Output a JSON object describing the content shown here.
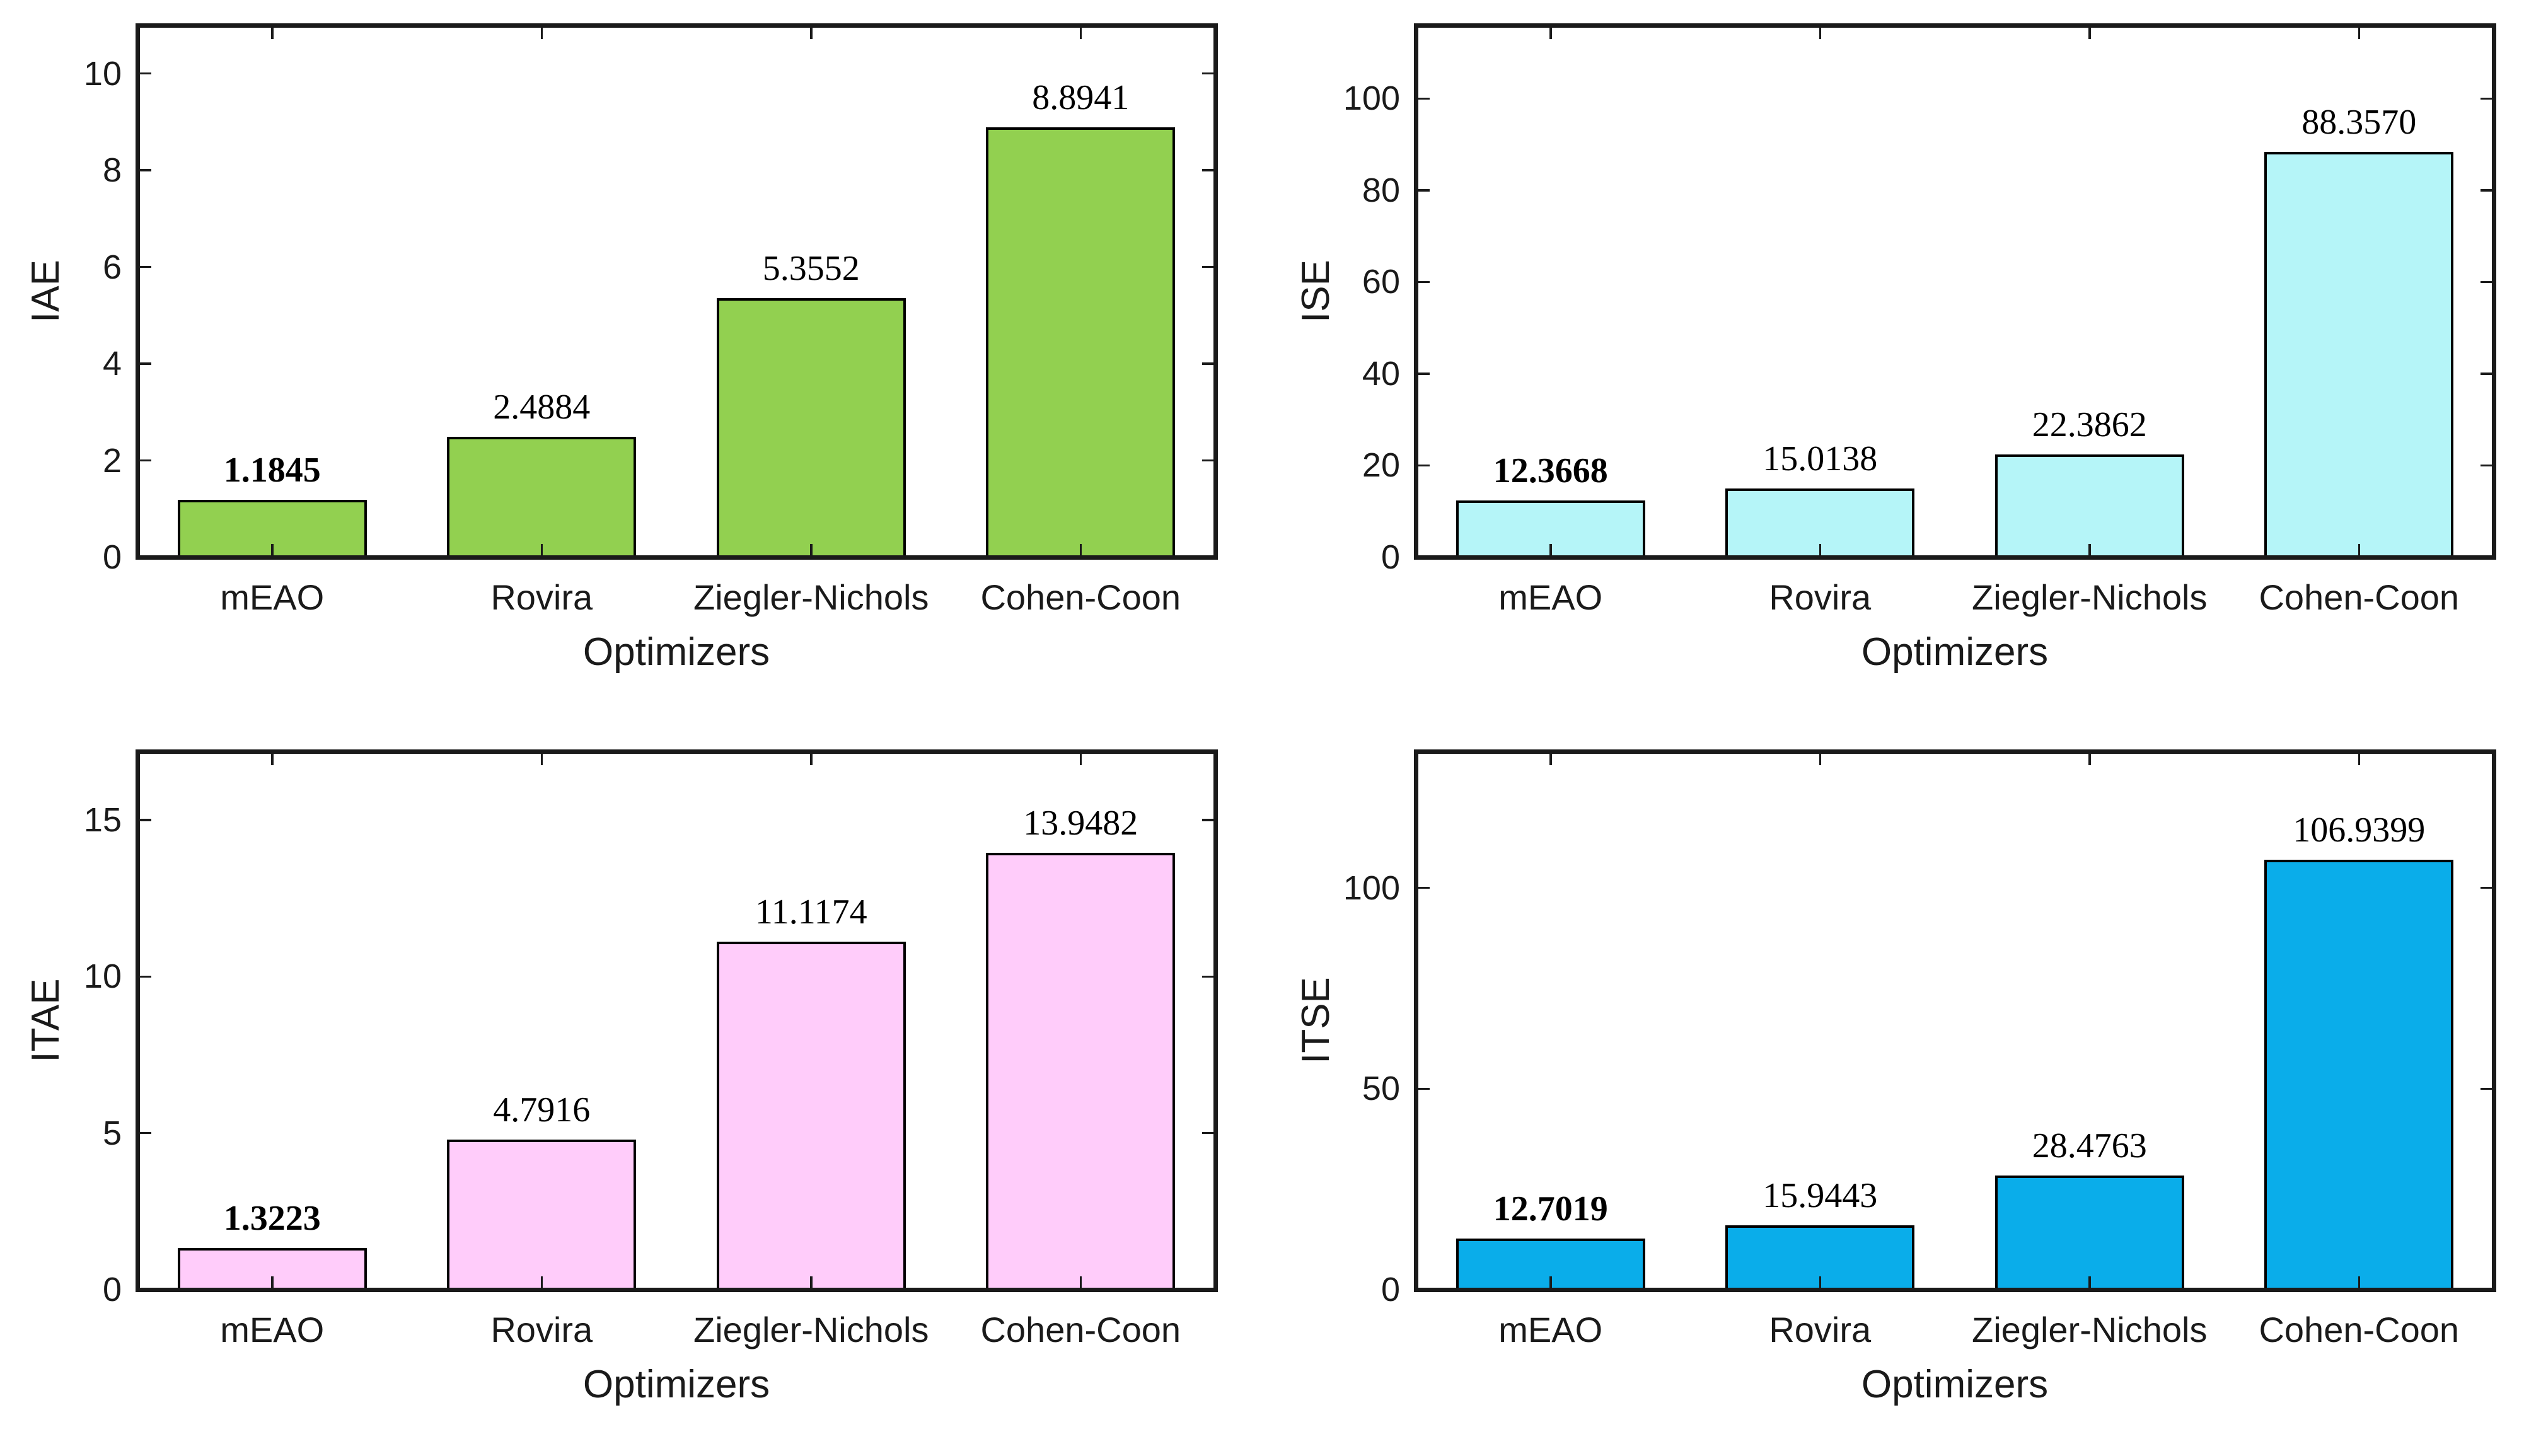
{
  "figure": {
    "background": "#ffffff",
    "description": "2x2 grid of bar charts comparing optimizers on error indices"
  },
  "chart_data": [
    {
      "type": "bar",
      "title": "",
      "ylabel": "IAE",
      "xlabel": "Optimizers",
      "categories": [
        "mEAO",
        "Rovira",
        "Ziegler-Nichols",
        "Cohen-Coon"
      ],
      "values": [
        1.1845,
        2.4884,
        5.3552,
        8.8941
      ],
      "value_labels": [
        "1.1845",
        "2.4884",
        "5.3552",
        "8.8941"
      ],
      "bold_value_index": 0,
      "yticks": [
        0,
        2,
        4,
        6,
        8,
        10
      ],
      "ylim": [
        0,
        11
      ],
      "grid": false,
      "legend": null,
      "bar_fill": "#92D050",
      "bar_edge": "#000000"
    },
    {
      "type": "bar",
      "title": "",
      "ylabel": "ISE",
      "xlabel": "Optimizers",
      "categories": [
        "mEAO",
        "Rovira",
        "Ziegler-Nichols",
        "Cohen-Coon"
      ],
      "values": [
        12.3668,
        15.0138,
        22.3862,
        88.357
      ],
      "value_labels": [
        "12.3668",
        "15.0138",
        "22.3862",
        "88.3570"
      ],
      "bold_value_index": 0,
      "yticks": [
        0,
        20,
        40,
        60,
        80,
        100
      ],
      "ylim": [
        0,
        116
      ],
      "grid": false,
      "legend": null,
      "bar_fill": "#B5F5F8",
      "bar_edge": "#000000"
    },
    {
      "type": "bar",
      "title": "",
      "ylabel": "ITAE",
      "xlabel": "Optimizers",
      "categories": [
        "mEAO",
        "Rovira",
        "Ziegler-Nichols",
        "Cohen-Coon"
      ],
      "values": [
        1.3223,
        4.7916,
        11.1174,
        13.9482
      ],
      "value_labels": [
        "1.3223",
        "4.7916",
        "11.1174",
        "13.9482"
      ],
      "bold_value_index": 0,
      "yticks": [
        0,
        5,
        10,
        15
      ],
      "ylim": [
        0,
        17.2
      ],
      "grid": false,
      "legend": null,
      "bar_fill": "#FFCCFA",
      "bar_edge": "#000000"
    },
    {
      "type": "bar",
      "title": "",
      "ylabel": "ITSE",
      "xlabel": "Optimizers",
      "categories": [
        "mEAO",
        "Rovira",
        "Ziegler-Nichols",
        "Cohen-Coon"
      ],
      "values": [
        12.7019,
        15.9443,
        28.4763,
        106.9399
      ],
      "value_labels": [
        "12.7019",
        "15.9443",
        "28.4763",
        "106.9399"
      ],
      "bold_value_index": 0,
      "yticks": [
        0,
        50,
        100
      ],
      "ylim": [
        0,
        134
      ],
      "grid": false,
      "legend": null,
      "bar_fill": "#0AADEA",
      "bar_edge": "#000000"
    }
  ]
}
